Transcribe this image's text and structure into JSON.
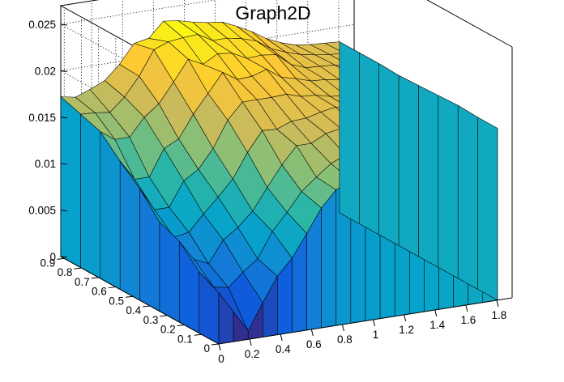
{
  "chart_data": {
    "type": "surface",
    "title": "Graph2D",
    "x_ticks": [
      "0",
      "0.2",
      "0.4",
      "0.6",
      "0.8",
      "1",
      "1.2",
      "1.4",
      "1.6",
      "1.8"
    ],
    "y_ticks": [
      "0",
      "0.1",
      "0.2",
      "0.3",
      "0.4",
      "0.5",
      "0.6",
      "0.7",
      "0.8",
      "0.9"
    ],
    "z_ticks": [
      "0",
      "0.005",
      "0.01",
      "0.015",
      "0.02",
      "0.025"
    ],
    "xlim": [
      0,
      1.9
    ],
    "ylim": [
      0,
      0.92
    ],
    "zlim": [
      0,
      0.027
    ],
    "grid": true,
    "colormap": [
      "#352a87",
      "#0f5cdd",
      "#1481d6",
      "#06a4ca",
      "#2eb7a4",
      "#87bf77",
      "#d1bb59",
      "#fec832",
      "#f9fb0e"
    ],
    "grid_x": [
      0,
      0.095,
      0.19,
      0.285,
      0.38,
      0.475,
      0.57,
      0.665,
      0.76,
      0.855,
      0.95,
      1.045,
      1.14,
      1.235,
      1.33,
      1.425,
      1.52,
      1.615,
      1.71,
      1.805
    ],
    "grid_y": [
      0,
      0.115,
      0.23,
      0.345,
      0.46,
      0.575,
      0.69,
      0.805,
      0.92
    ],
    "z_values": [
      [
        0.0055,
        0.0032,
        0.0009,
        0.0037,
        0.0063,
        0.008,
        0.0104,
        0.0129,
        0.0146,
        0.0154,
        0.016,
        0.0165,
        0.0169,
        0.0168,
        0.0172,
        0.0175,
        0.0175,
        0.0178,
        0.0182,
        0.0185
      ],
      [
        0.0066,
        0.0047,
        0.0044,
        0.0058,
        0.007,
        0.0097,
        0.0115,
        0.0135,
        0.0148,
        0.016,
        0.0167,
        0.0171,
        0.0173,
        0.0174,
        0.0176,
        0.0178,
        0.018,
        0.0181,
        0.0183,
        0.0185
      ],
      [
        0.0087,
        0.0065,
        0.0058,
        0.0081,
        0.0092,
        0.0107,
        0.013,
        0.0152,
        0.017,
        0.017,
        0.0178,
        0.0181,
        0.0181,
        0.0182,
        0.0182,
        0.0183,
        0.0183,
        0.0184,
        0.0185,
        0.0186
      ],
      [
        0.0096,
        0.0077,
        0.008,
        0.0097,
        0.0113,
        0.013,
        0.0156,
        0.0177,
        0.0176,
        0.0182,
        0.0183,
        0.0187,
        0.019,
        0.0186,
        0.0186,
        0.0186,
        0.0186,
        0.0188,
        0.0186,
        0.0185
      ],
      [
        0.012,
        0.0095,
        0.0095,
        0.0121,
        0.0131,
        0.0151,
        0.0179,
        0.0196,
        0.0196,
        0.0196,
        0.0197,
        0.0192,
        0.0191,
        0.0187,
        0.0186,
        0.0186,
        0.0186,
        0.0186,
        0.0186,
        0.0184
      ],
      [
        0.0138,
        0.0116,
        0.0116,
        0.0144,
        0.0152,
        0.0176,
        0.0196,
        0.0216,
        0.0206,
        0.0207,
        0.0212,
        0.0201,
        0.0197,
        0.0192,
        0.0191,
        0.0188,
        0.0188,
        0.0186,
        0.0186,
        0.0183
      ],
      [
        0.0158,
        0.0147,
        0.0147,
        0.0166,
        0.0178,
        0.0199,
        0.0221,
        0.0213,
        0.0222,
        0.022,
        0.0212,
        0.0213,
        0.0211,
        0.0198,
        0.0192,
        0.0191,
        0.019,
        0.0187,
        0.0185,
        0.0184
      ],
      [
        0.0165,
        0.0164,
        0.0162,
        0.0176,
        0.0196,
        0.0222,
        0.0228,
        0.023,
        0.0231,
        0.0222,
        0.0222,
        0.0219,
        0.0214,
        0.0203,
        0.0197,
        0.0192,
        0.0189,
        0.0187,
        0.0186,
        0.0184
      ],
      [
        0.0172,
        0.0169,
        0.0175,
        0.0182,
        0.0197,
        0.0217,
        0.022,
        0.0236,
        0.0234,
        0.023,
        0.0227,
        0.0225,
        0.0218,
        0.021,
        0.02,
        0.0193,
        0.0188,
        0.0186,
        0.0185,
        0.0184
      ]
    ]
  }
}
